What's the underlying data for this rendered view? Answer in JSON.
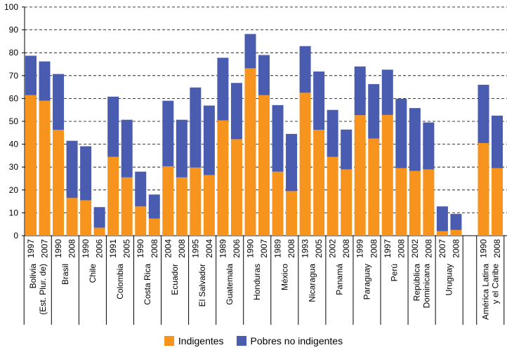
{
  "chart_data": {
    "type": "bar",
    "stacked": true,
    "ylim": [
      0,
      100
    ],
    "yticks": [
      0,
      10,
      20,
      30,
      40,
      50,
      60,
      70,
      80,
      90,
      100
    ],
    "grid": "horizontal-dashed",
    "legend_position": "bottom",
    "colors": {
      "Indigentes": "#F7941D",
      "Pobres no indigentes": "#4A5CB0"
    },
    "groups": [
      {
        "name_lines": [
          "Bolivia",
          "(Est. Plur. de)"
        ],
        "years": [
          "1997",
          "2007"
        ]
      },
      {
        "name_lines": [
          "Brasil"
        ],
        "years": [
          "1990",
          "2008"
        ]
      },
      {
        "name_lines": [
          "Chile"
        ],
        "years": [
          "1990",
          "2006"
        ]
      },
      {
        "name_lines": [
          "Colombia"
        ],
        "years": [
          "1991",
          "2005"
        ]
      },
      {
        "name_lines": [
          "Costa Rica"
        ],
        "years": [
          "1990",
          "2008"
        ]
      },
      {
        "name_lines": [
          "Ecuador"
        ],
        "years": [
          "2004",
          "2008"
        ]
      },
      {
        "name_lines": [
          "El Salvador"
        ],
        "years": [
          "1995",
          "2004"
        ]
      },
      {
        "name_lines": [
          "Guatemala"
        ],
        "years": [
          "1989",
          "2006"
        ]
      },
      {
        "name_lines": [
          "Honduras"
        ],
        "years": [
          "1990",
          "2007"
        ]
      },
      {
        "name_lines": [
          "México"
        ],
        "years": [
          "1989",
          "2008"
        ]
      },
      {
        "name_lines": [
          "Nicaragua"
        ],
        "years": [
          "1993",
          "2005"
        ]
      },
      {
        "name_lines": [
          "Panamá"
        ],
        "years": [
          "2002",
          "2008"
        ]
      },
      {
        "name_lines": [
          "Paraguay"
        ],
        "years": [
          "1999",
          "2008"
        ]
      },
      {
        "name_lines": [
          "Perú"
        ],
        "years": [
          "1997",
          "2008"
        ]
      },
      {
        "name_lines": [
          "República",
          "Dominicana"
        ],
        "years": [
          "2002",
          "2008"
        ]
      },
      {
        "name_lines": [
          "Uruguay"
        ],
        "years": [
          "2007",
          "2008"
        ]
      },
      {
        "name_lines": [
          "América Latina",
          "y el Caribe"
        ],
        "years": [
          "1990",
          "2008"
        ]
      }
    ],
    "series": [
      {
        "name": "Indigentes",
        "values": [
          61.5,
          59,
          46.3,
          16.5,
          15.5,
          3.5,
          34.5,
          25.5,
          12.8,
          7.5,
          30.3,
          25.5,
          29.8,
          26.5,
          50.4,
          42.2,
          73.2,
          61.5,
          28,
          19.5,
          62.5,
          46.3,
          34.5,
          29,
          52.7,
          42.5,
          52.8,
          29.5,
          28.3,
          29,
          2,
          2.5,
          40.5,
          29.5
        ]
      },
      {
        "name": "Pobres no indigentes",
        "values": [
          17.2,
          17.2,
          24.4,
          25,
          23.6,
          9,
          26.3,
          25.2,
          15.2,
          10.5,
          28.7,
          25.2,
          35,
          30.4,
          27.4,
          24.6,
          15,
          17.5,
          29.1,
          25,
          20.4,
          25.5,
          20.5,
          17.4,
          21.3,
          23.8,
          19.8,
          30.4,
          27.5,
          20.5,
          10.8,
          7,
          25.5,
          23
        ]
      }
    ]
  }
}
